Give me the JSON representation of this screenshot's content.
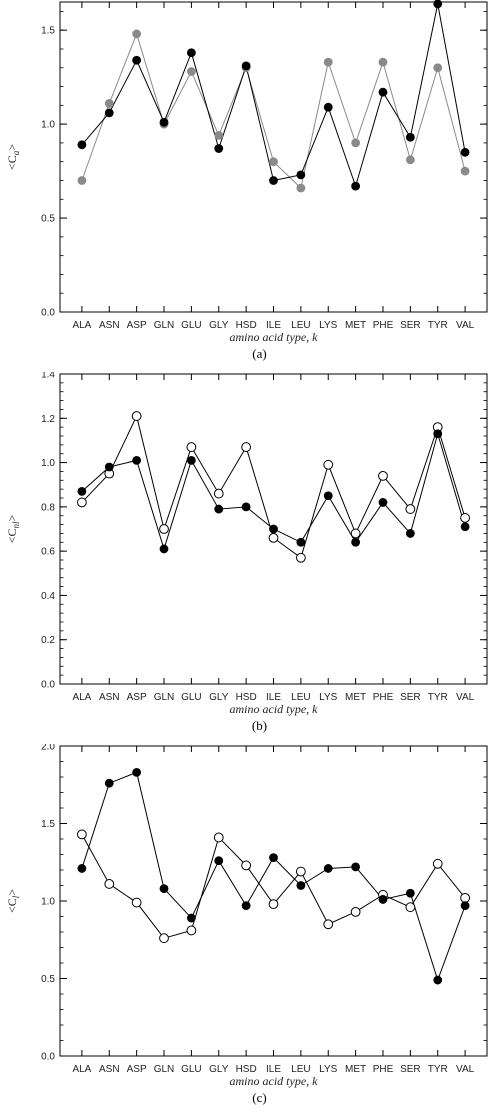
{
  "chart_data": [
    {
      "type": "line",
      "panel_label": "(a)",
      "ylabel": "<C",
      "ylabel_sub": "a",
      "ylabel_close": ">",
      "xlabel": "amino acid type, k",
      "categories": [
        "ALA",
        "ASN",
        "ASP",
        "GLN",
        "GLU",
        "GLY",
        "HSD",
        "ILE",
        "LEU",
        "LYS",
        "MET",
        "PHE",
        "SER",
        "TYR",
        "VAL"
      ],
      "ylim": [
        0,
        1.65
      ],
      "yticks": [
        0.0,
        0.5,
        1.0,
        1.5
      ],
      "ytick_labels": [
        "0.0",
        "0.5",
        "1.0",
        "1.5"
      ],
      "series": [
        {
          "values": [
            0.89,
            1.06,
            1.34,
            1.01,
            1.38,
            0.87,
            1.31,
            0.7,
            0.73,
            1.09,
            0.67,
            1.17,
            0.93,
            1.64,
            0.85
          ],
          "line_color": "#000000",
          "marker": "filled",
          "marker_color": "#000000"
        },
        {
          "values": [
            0.7,
            1.11,
            1.48,
            1.0,
            1.28,
            0.94,
            1.3,
            0.8,
            0.66,
            1.33,
            0.9,
            1.33,
            0.81,
            1.3,
            0.75
          ],
          "line_color": "#8a8a8a",
          "marker": "filled",
          "marker_color": "#8a8a8a"
        }
      ]
    },
    {
      "type": "line",
      "panel_label": "(b)",
      "ylabel": "<C",
      "ylabel_sub": "nl",
      "ylabel_close": ">",
      "xlabel": "amino acid type, k",
      "categories": [
        "ALA",
        "ASN",
        "ASP",
        "GLN",
        "GLU",
        "GLY",
        "HSD",
        "ILE",
        "LEU",
        "LYS",
        "MET",
        "PHE",
        "SER",
        "TYR",
        "VAL"
      ],
      "ylim": [
        0,
        1.4
      ],
      "yticks": [
        0.0,
        0.2,
        0.4,
        0.6,
        0.8,
        1.0,
        1.2,
        1.4
      ],
      "ytick_labels": [
        "0.0",
        "0.2",
        "0.4",
        "0.6",
        "0.8",
        "1.0",
        "1.2",
        "1.4"
      ],
      "series": [
        {
          "values": [
            0.87,
            0.98,
            1.01,
            0.61,
            1.01,
            0.79,
            0.8,
            0.7,
            0.64,
            0.85,
            0.64,
            0.82,
            0.68,
            1.13,
            0.71
          ],
          "line_color": "#000000",
          "marker": "filled",
          "marker_color": "#000000"
        },
        {
          "values": [
            0.82,
            0.95,
            1.21,
            0.7,
            1.07,
            0.86,
            1.07,
            0.66,
            0.57,
            0.99,
            0.68,
            0.94,
            0.79,
            1.16,
            0.75
          ],
          "line_color": "#000000",
          "marker": "open",
          "marker_color": "#000000"
        }
      ]
    },
    {
      "type": "line",
      "panel_label": "(c)",
      "ylabel": "<C",
      "ylabel_sub": "l",
      "ylabel_close": ">",
      "xlabel": "amino acid type, k",
      "categories": [
        "ALA",
        "ASN",
        "ASP",
        "GLN",
        "GLU",
        "GLY",
        "HSD",
        "ILE",
        "LEU",
        "LYS",
        "MET",
        "PHE",
        "SER",
        "TYR",
        "VAL"
      ],
      "ylim": [
        0,
        2.0
      ],
      "yticks": [
        0.0,
        0.5,
        1.0,
        1.5,
        2.0
      ],
      "ytick_labels": [
        "0.0",
        "0.5",
        "1.0",
        "1.5",
        "2.0"
      ],
      "series": [
        {
          "values": [
            1.21,
            1.76,
            1.83,
            1.08,
            0.89,
            1.26,
            0.97,
            1.28,
            1.1,
            1.21,
            1.22,
            1.01,
            1.05,
            0.49,
            0.97
          ],
          "line_color": "#000000",
          "marker": "filled",
          "marker_color": "#000000"
        },
        {
          "values": [
            1.43,
            1.11,
            0.99,
            0.76,
            0.81,
            1.41,
            1.23,
            0.98,
            1.19,
            0.85,
            0.93,
            1.04,
            0.96,
            1.24,
            1.02
          ],
          "line_color": "#000000",
          "marker": "open",
          "marker_color": "#000000"
        }
      ]
    }
  ]
}
